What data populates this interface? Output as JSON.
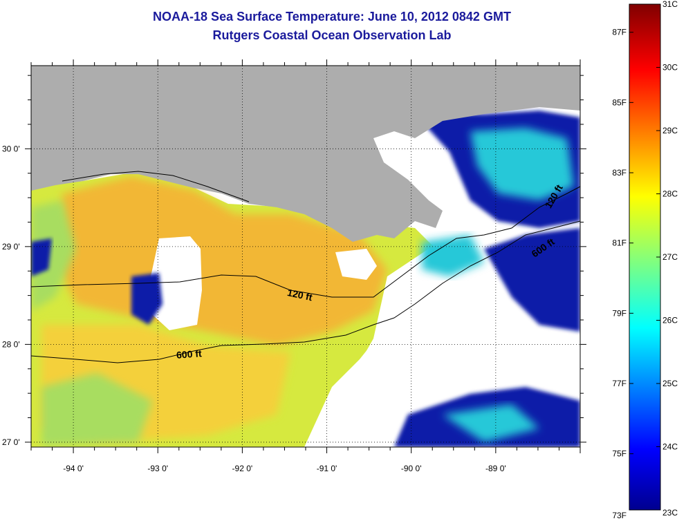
{
  "title": {
    "line1": "NOAA-18 Sea Surface Temperature:  June 10, 2012 0842 GMT",
    "line2": "Rutgers Coastal Ocean Observation Lab"
  },
  "map": {
    "lon_range": [
      -94.5,
      -88.0
    ],
    "lat_range": [
      26.95,
      30.85
    ],
    "lon_ticks": [
      {
        "value": -94,
        "label": "-94 0'"
      },
      {
        "value": -93,
        "label": "-93 0'"
      },
      {
        "value": -92,
        "label": "-92 0'"
      },
      {
        "value": -91,
        "label": "-91 0'"
      },
      {
        "value": -90,
        "label": "-90 0'"
      },
      {
        "value": -89,
        "label": "-89 0'"
      }
    ],
    "lat_ticks": [
      {
        "value": 30,
        "label": "30 0'"
      },
      {
        "value": 29,
        "label": "29 0'"
      },
      {
        "value": 28,
        "label": "28 0'"
      },
      {
        "value": 27,
        "label": "27 0'"
      }
    ],
    "gridlines": true,
    "colors": {
      "land": "#adadad",
      "no_data": "#ffffff",
      "warm": "#f2b734",
      "mid": "#f4d03a",
      "cool_yellow": "#d6e93f",
      "green": "#a8dd60",
      "cyan": "#28c8d8",
      "deep_blue": "#0a1aa8"
    },
    "isobaths": [
      {
        "label": "120 ft"
      },
      {
        "label": "600 ft"
      },
      {
        "label": "600 ft"
      },
      {
        "label": "120 ft"
      }
    ]
  },
  "colorbar": {
    "min_c": 23,
    "max_c": 31,
    "fahrenheit_labels": [
      "87F",
      "85F",
      "83F",
      "81F",
      "79F",
      "77F",
      "75F",
      "73F"
    ],
    "celsius_labels": [
      "31C",
      "30C",
      "29C",
      "28C",
      "27C",
      "26C",
      "25C",
      "24C",
      "23C"
    ],
    "fahrenheit_values": [
      87,
      85,
      83,
      81,
      79,
      77,
      75,
      73
    ],
    "celsius_values": [
      31,
      30,
      29,
      28,
      27,
      26,
      25,
      24,
      23
    ]
  }
}
